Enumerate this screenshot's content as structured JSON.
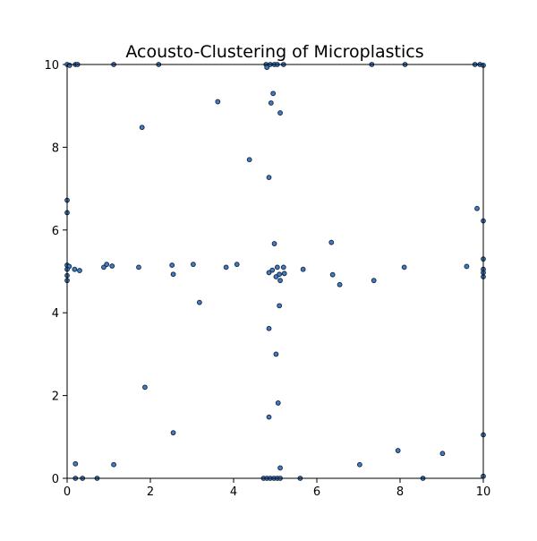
{
  "chart_data": {
    "type": "scatter",
    "title": "Acousto-Clustering of Microplastics",
    "xlabel": "",
    "ylabel": "",
    "xlim": [
      0,
      10
    ],
    "ylim": [
      0,
      10
    ],
    "xticks": [
      "0",
      "2",
      "4",
      "6",
      "8",
      "10"
    ],
    "yticks": [
      "0",
      "2",
      "4",
      "6",
      "8",
      "10"
    ],
    "grid": false,
    "legend": "none",
    "marker_face": "#3f7fbf",
    "marker_edge": "#1a2a4a",
    "points": [
      [
        0.0,
        10.0
      ],
      [
        0.06,
        9.98
      ],
      [
        0.2,
        10.0
      ],
      [
        0.25,
        10.0
      ],
      [
        1.12,
        10.0
      ],
      [
        2.2,
        10.0
      ],
      [
        4.78,
        10.0
      ],
      [
        4.8,
        9.93
      ],
      [
        4.88,
        10.0
      ],
      [
        4.98,
        10.0
      ],
      [
        5.05,
        10.0
      ],
      [
        5.2,
        10.0
      ],
      [
        7.32,
        10.0
      ],
      [
        8.12,
        10.0
      ],
      [
        9.8,
        10.0
      ],
      [
        9.92,
        10.0
      ],
      [
        10.0,
        9.98
      ],
      [
        3.62,
        9.1
      ],
      [
        4.95,
        9.3
      ],
      [
        4.9,
        9.07
      ],
      [
        5.12,
        8.83
      ],
      [
        1.8,
        8.48
      ],
      [
        4.38,
        7.7
      ],
      [
        4.85,
        7.27
      ],
      [
        0.0,
        6.72
      ],
      [
        0.0,
        6.42
      ],
      [
        9.85,
        6.52
      ],
      [
        10.0,
        6.22
      ],
      [
        4.98,
        5.67
      ],
      [
        6.35,
        5.7
      ],
      [
        0.0,
        5.15
      ],
      [
        0.05,
        5.12
      ],
      [
        0.0,
        5.05
      ],
      [
        0.18,
        5.05
      ],
      [
        0.3,
        5.02
      ],
      [
        0.0,
        4.9
      ],
      [
        0.0,
        4.78
      ],
      [
        0.88,
        5.1
      ],
      [
        0.95,
        5.17
      ],
      [
        1.08,
        5.13
      ],
      [
        1.72,
        5.1
      ],
      [
        2.52,
        5.15
      ],
      [
        2.55,
        4.93
      ],
      [
        3.03,
        5.17
      ],
      [
        3.82,
        5.1
      ],
      [
        4.08,
        5.17
      ],
      [
        4.85,
        4.97
      ],
      [
        4.93,
        5.03
      ],
      [
        5.05,
        5.1
      ],
      [
        5.2,
        5.1
      ],
      [
        5.02,
        4.87
      ],
      [
        5.1,
        4.93
      ],
      [
        5.22,
        4.95
      ],
      [
        5.12,
        4.78
      ],
      [
        5.67,
        5.05
      ],
      [
        6.38,
        4.92
      ],
      [
        6.55,
        4.68
      ],
      [
        7.37,
        4.78
      ],
      [
        8.1,
        5.1
      ],
      [
        9.6,
        5.12
      ],
      [
        10.0,
        5.3
      ],
      [
        10.0,
        5.05
      ],
      [
        10.0,
        4.97
      ],
      [
        10.0,
        4.87
      ],
      [
        3.18,
        4.25
      ],
      [
        5.1,
        4.17
      ],
      [
        4.85,
        3.62
      ],
      [
        5.02,
        3.0
      ],
      [
        1.87,
        2.2
      ],
      [
        5.07,
        1.82
      ],
      [
        4.85,
        1.48
      ],
      [
        2.55,
        1.1
      ],
      [
        10.0,
        1.05
      ],
      [
        7.95,
        0.67
      ],
      [
        9.02,
        0.6
      ],
      [
        0.2,
        0.35
      ],
      [
        1.12,
        0.33
      ],
      [
        7.03,
        0.33
      ],
      [
        5.12,
        0.25
      ],
      [
        0.2,
        0.0
      ],
      [
        0.37,
        0.0
      ],
      [
        0.72,
        0.0
      ],
      [
        4.72,
        0.0
      ],
      [
        4.8,
        0.0
      ],
      [
        4.88,
        0.0
      ],
      [
        4.97,
        0.0
      ],
      [
        5.05,
        0.0
      ],
      [
        5.12,
        0.0
      ],
      [
        5.6,
        0.0
      ],
      [
        8.55,
        0.0
      ],
      [
        10.0,
        0.05
      ]
    ]
  }
}
